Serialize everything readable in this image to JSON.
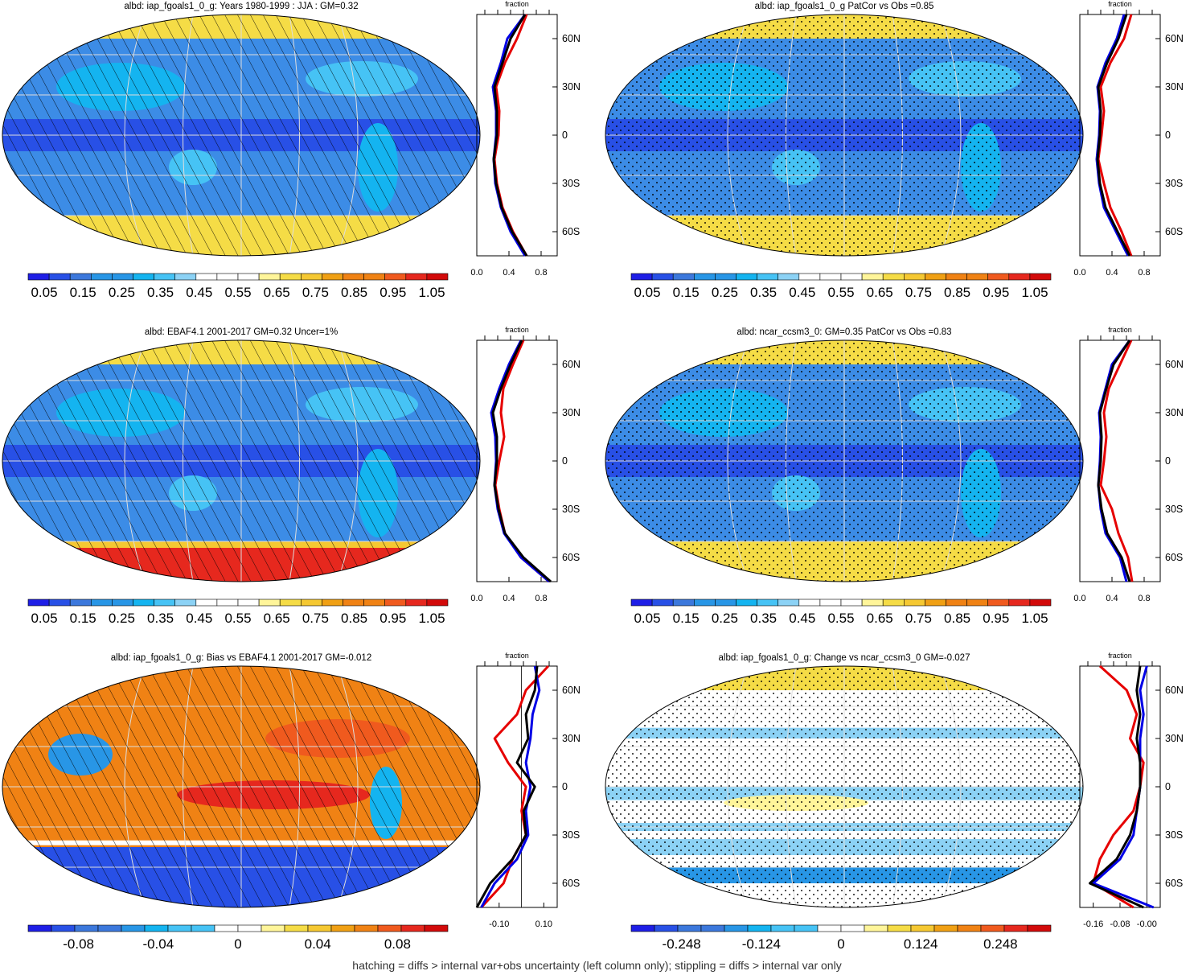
{
  "footnote": "hatching = diffs > internal var+obs uncertainty (left column only); stippling = diffs > internal var only",
  "colors": {
    "levels14": [
      "#1e1ee6",
      "#2850e6",
      "#3c78dc",
      "#2896e6",
      "#14b4f0",
      "#46c3f5",
      "#8cd2f5",
      "#ffffff",
      "#ffffff",
      "#fff59a",
      "#f5dc46",
      "#f5c832",
      "#f0a014",
      "#f08214",
      "#f05a1e",
      "#e6281e",
      "#d20a0a"
    ],
    "ocean_mean": "#3c8ce6",
    "land_mean": "#3c78dc",
    "polar_warm": "#f5dc46",
    "ant_strong": "#e6281e",
    "bias_warm": "#f08214",
    "change_light": "#8cd2f5",
    "line_red": "#e60000",
    "line_blue": "#0000e6",
    "line_black": "#000000"
  },
  "panels": [
    {
      "title": "albd: iap_fgoals1_0_g: Years 1980-1999 : JJA : GM=0.32",
      "map_kind": "mean",
      "overlay": "hatch",
      "colorbar_labels": [
        "0.05",
        "0.15",
        "0.25",
        "0.35",
        "0.45",
        "0.55",
        "0.65",
        "0.75",
        "0.85",
        "0.95",
        "1.05"
      ],
      "zonal_axis_label": "fraction",
      "zonal_xticks": [
        "0.0",
        "0.4",
        "0.8"
      ],
      "lat_ticks": [
        "60N",
        "30N",
        "0",
        "30S",
        "60S"
      ]
    },
    {
      "title": "albd: iap_fgoals1_0_g PatCor vs Obs =0.85",
      "map_kind": "mean",
      "overlay": "stipple",
      "colorbar_labels": [
        "0.05",
        "0.15",
        "0.25",
        "0.35",
        "0.45",
        "0.55",
        "0.65",
        "0.75",
        "0.85",
        "0.95",
        "1.05"
      ],
      "zonal_axis_label": "fraction",
      "zonal_xticks": [
        "0.0",
        "0.4",
        "0.8"
      ],
      "lat_ticks": [
        "60N",
        "30N",
        "0",
        "30S",
        "60S"
      ]
    },
    {
      "title": "albd: EBAF4.1 2001-2017 GM=0.32 Uncer=1%",
      "map_kind": "obs",
      "overlay": "hatch",
      "colorbar_labels": [
        "0.05",
        "0.15",
        "0.25",
        "0.35",
        "0.45",
        "0.55",
        "0.65",
        "0.75",
        "0.85",
        "0.95",
        "1.05"
      ],
      "zonal_axis_label": "fraction",
      "zonal_xticks": [
        "0.0",
        "0.4",
        "0.8"
      ],
      "lat_ticks": [
        "60N",
        "30N",
        "0",
        "30S",
        "60S"
      ]
    },
    {
      "title": "albd: ncar_ccsm3_0: GM=0.35 PatCor vs Obs =0.83",
      "map_kind": "mean",
      "overlay": "stipple",
      "colorbar_labels": [
        "0.05",
        "0.15",
        "0.25",
        "0.35",
        "0.45",
        "0.55",
        "0.65",
        "0.75",
        "0.85",
        "0.95",
        "1.05"
      ],
      "zonal_axis_label": "fraction",
      "zonal_xticks": [
        "0.0",
        "0.4",
        "0.8"
      ],
      "lat_ticks": [
        "60N",
        "30N",
        "0",
        "30S",
        "60S"
      ]
    },
    {
      "title": "albd: iap_fgoals1_0_g: Bias vs EBAF4.1 2001-2017 GM=-0.012",
      "map_kind": "bias",
      "overlay": "hatch",
      "colorbar_labels": [
        "-0.08",
        "-0.04",
        "0",
        "0.04",
        "0.08"
      ],
      "zonal_axis_label": "fraction",
      "zonal_xticks": [
        "-0.10",
        "0.10"
      ],
      "lat_ticks": [
        "60N",
        "30N",
        "0",
        "30S",
        "60S"
      ]
    },
    {
      "title": "albd: iap_fgoals1_0_g: Change vs ncar_ccsm3_0 GM=-0.027",
      "map_kind": "change",
      "overlay": "stipple",
      "colorbar_labels": [
        "-0.248",
        "-0.124",
        "0",
        "0.124",
        "0.248"
      ],
      "zonal_axis_label": "fraction",
      "zonal_xticks": [
        "-0.16",
        "-0.08",
        "-0.00"
      ],
      "lat_ticks": [
        "60N",
        "30N",
        "0",
        "30S",
        "60S"
      ]
    }
  ],
  "chart_data": [
    {
      "type": "heatmap",
      "title": "albd: iap_fgoals1_0_g: Years 1980-1999 : JJA : GM=0.32",
      "colorbar_ticks": [
        0.05,
        0.15,
        0.25,
        0.35,
        0.45,
        0.55,
        0.65,
        0.75,
        0.85,
        0.95,
        1.05
      ],
      "zonal": {
        "xlabel": "fraction",
        "xlim": [
          0,
          1.0
        ],
        "lat": [
          75,
          60,
          45,
          30,
          15,
          0,
          -15,
          -30,
          -45,
          -60,
          -75
        ],
        "series": [
          {
            "color": "red",
            "values": [
              0.62,
              0.5,
              0.35,
              0.24,
              0.28,
              0.27,
              0.22,
              0.25,
              0.32,
              0.45,
              0.62
            ]
          },
          {
            "color": "blue",
            "values": [
              0.6,
              0.38,
              0.3,
              0.2,
              0.24,
              0.24,
              0.21,
              0.23,
              0.3,
              0.42,
              0.6
            ]
          },
          {
            "color": "black",
            "values": [
              0.6,
              0.42,
              0.32,
              0.22,
              0.25,
              0.25,
              0.21,
              0.24,
              0.31,
              0.44,
              0.62
            ]
          }
        ]
      }
    },
    {
      "type": "heatmap",
      "title": "albd: iap_fgoals1_0_g PatCor vs Obs =0.85",
      "colorbar_ticks": [
        0.05,
        0.15,
        0.25,
        0.35,
        0.45,
        0.55,
        0.65,
        0.75,
        0.85,
        0.95,
        1.05
      ],
      "zonal": {
        "xlabel": "fraction",
        "xlim": [
          0,
          1.0
        ],
        "lat": [
          75,
          60,
          45,
          30,
          15,
          0,
          -15,
          -30,
          -45,
          -60,
          -75
        ],
        "series": [
          {
            "color": "red",
            "values": [
              0.64,
              0.55,
              0.38,
              0.26,
              0.3,
              0.27,
              0.23,
              0.3,
              0.38,
              0.52,
              0.64
            ]
          },
          {
            "color": "blue",
            "values": [
              0.55,
              0.46,
              0.32,
              0.22,
              0.25,
              0.24,
              0.21,
              0.24,
              0.3,
              0.45,
              0.6
            ]
          },
          {
            "color": "black",
            "values": [
              0.58,
              0.48,
              0.34,
              0.23,
              0.26,
              0.25,
              0.22,
              0.25,
              0.32,
              0.47,
              0.62
            ]
          }
        ]
      }
    },
    {
      "type": "heatmap",
      "title": "albd: EBAF4.1 2001-2017 GM=0.32 Uncer=1%",
      "colorbar_ticks": [
        0.05,
        0.15,
        0.25,
        0.35,
        0.45,
        0.55,
        0.65,
        0.75,
        0.85,
        0.95,
        1.05
      ],
      "zonal": {
        "xlabel": "fraction",
        "xlim": [
          0,
          1.0
        ],
        "lat": [
          75,
          60,
          45,
          30,
          15,
          0,
          -15,
          -30,
          -45,
          -60,
          -75
        ],
        "series": [
          {
            "color": "red",
            "values": [
              0.58,
              0.45,
              0.33,
              0.3,
              0.34,
              0.28,
              0.23,
              0.28,
              0.35,
              0.55,
              0.9
            ]
          },
          {
            "color": "blue",
            "values": [
              0.55,
              0.4,
              0.28,
              0.18,
              0.23,
              0.24,
              0.22,
              0.26,
              0.34,
              0.55,
              0.9
            ]
          },
          {
            "color": "black",
            "values": [
              0.56,
              0.42,
              0.3,
              0.2,
              0.25,
              0.25,
              0.22,
              0.27,
              0.35,
              0.58,
              0.92
            ]
          }
        ]
      }
    },
    {
      "type": "heatmap",
      "title": "albd: ncar_ccsm3_0: GM=0.35 PatCor vs Obs =0.83",
      "colorbar_ticks": [
        0.05,
        0.15,
        0.25,
        0.35,
        0.45,
        0.55,
        0.65,
        0.75,
        0.85,
        0.95,
        1.05
      ],
      "zonal": {
        "xlabel": "fraction",
        "xlim": [
          0,
          1.0
        ],
        "lat": [
          75,
          60,
          45,
          30,
          15,
          0,
          -15,
          -30,
          -45,
          -60,
          -75
        ],
        "series": [
          {
            "color": "red",
            "values": [
              0.64,
              0.5,
              0.36,
              0.3,
              0.33,
              0.3,
              0.26,
              0.4,
              0.48,
              0.6,
              0.65
            ]
          },
          {
            "color": "blue",
            "values": [
              0.62,
              0.4,
              0.32,
              0.24,
              0.26,
              0.25,
              0.23,
              0.26,
              0.32,
              0.5,
              0.58
            ]
          },
          {
            "color": "black",
            "values": [
              0.62,
              0.42,
              0.33,
              0.25,
              0.27,
              0.26,
              0.23,
              0.27,
              0.34,
              0.52,
              0.62
            ]
          }
        ]
      }
    },
    {
      "type": "heatmap",
      "title": "albd: iap_fgoals1_0_g: Bias vs EBAF4.1 2001-2017 GM=-0.012",
      "colorbar_ticks": [
        -0.08,
        -0.04,
        0,
        0.04,
        0.08
      ],
      "zonal": {
        "xlabel": "fraction",
        "xlim": [
          -0.2,
          0.16
        ],
        "lat": [
          75,
          60,
          45,
          30,
          15,
          0,
          -15,
          -30,
          -45,
          -60,
          -75
        ],
        "series": [
          {
            "color": "red",
            "values": [
              0.12,
              0.02,
              -0.02,
              -0.12,
              -0.06,
              0.02,
              0.0,
              0.02,
              -0.04,
              -0.08,
              -0.18
            ]
          },
          {
            "color": "blue",
            "values": [
              0.06,
              0.08,
              0.05,
              0.04,
              0.02,
              0.04,
              0.02,
              0.03,
              -0.02,
              -0.12,
              -0.18
            ]
          },
          {
            "color": "black",
            "values": [
              0.07,
              0.06,
              0.02,
              0.03,
              -0.02,
              0.06,
              0.01,
              0.02,
              -0.04,
              -0.14,
              -0.2
            ]
          }
        ]
      }
    },
    {
      "type": "heatmap",
      "title": "albd: iap_fgoals1_0_g: Change vs ncar_ccsm3_0 GM=-0.027",
      "colorbar_ticks": [
        -0.248,
        -0.124,
        0,
        0.124,
        0.248
      ],
      "zonal": {
        "xlabel": "fraction",
        "xlim": [
          -0.2,
          0.04
        ],
        "lat": [
          75,
          60,
          45,
          30,
          15,
          0,
          -15,
          -30,
          -45,
          -60,
          -75
        ],
        "series": [
          {
            "color": "red",
            "values": [
              -0.14,
              -0.06,
              -0.03,
              -0.05,
              -0.01,
              -0.02,
              -0.04,
              -0.1,
              -0.14,
              -0.16,
              -0.04
            ]
          },
          {
            "color": "blue",
            "values": [
              0.0,
              -0.02,
              -0.01,
              -0.02,
              -0.02,
              -0.02,
              -0.03,
              -0.04,
              -0.08,
              -0.16,
              0.02
            ]
          },
          {
            "color": "black",
            "values": [
              -0.02,
              -0.03,
              -0.02,
              -0.03,
              -0.02,
              -0.02,
              -0.03,
              -0.05,
              -0.09,
              -0.17,
              -0.01
            ]
          }
        ]
      }
    }
  ]
}
